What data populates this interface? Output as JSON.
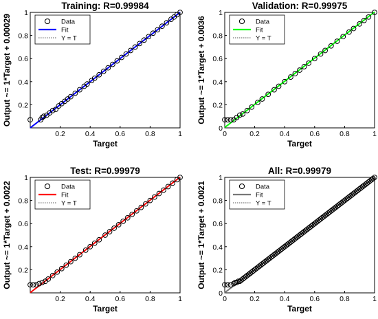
{
  "colors": {
    "training_fit": "#0000ff",
    "validation_fit": "#00ff00",
    "test_fit": "#ff0000",
    "all_fit": "#777777",
    "data_marker": "#000000",
    "identity": "#555555"
  },
  "chart_data": [
    {
      "type": "scatter",
      "title": "Training: R=0.99984",
      "xlabel": "Target",
      "ylabel": "Output ~= 1*Target + 0.00029",
      "xlim": [
        0,
        1
      ],
      "ylim": [
        0,
        1
      ],
      "xticks": [
        "0.2",
        "0.4",
        "0.6",
        "0.8",
        "1"
      ],
      "yticks": [
        "0.2",
        "0.4",
        "0.6",
        "0.8",
        "1"
      ],
      "grid": false,
      "legend_position": "top-left",
      "legend": [
        "Data",
        "Fit",
        "Y = T"
      ],
      "fit": {
        "slope": 1,
        "intercept": 0.00029,
        "color": "#0000ff"
      },
      "points": [
        [
          0.0,
          0.07
        ],
        [
          0.07,
          0.07
        ],
        [
          0.08,
          0.09
        ],
        [
          0.09,
          0.1
        ],
        [
          0.11,
          0.11
        ],
        [
          0.13,
          0.13
        ],
        [
          0.15,
          0.15
        ],
        [
          0.17,
          0.16
        ],
        [
          0.19,
          0.19
        ],
        [
          0.21,
          0.21
        ],
        [
          0.23,
          0.23
        ],
        [
          0.25,
          0.25
        ],
        [
          0.27,
          0.27
        ],
        [
          0.3,
          0.3
        ],
        [
          0.33,
          0.33
        ],
        [
          0.36,
          0.36
        ],
        [
          0.38,
          0.38
        ],
        [
          0.41,
          0.41
        ],
        [
          0.43,
          0.43
        ],
        [
          0.46,
          0.46
        ],
        [
          0.49,
          0.49
        ],
        [
          0.52,
          0.52
        ],
        [
          0.55,
          0.55
        ],
        [
          0.58,
          0.58
        ],
        [
          0.61,
          0.61
        ],
        [
          0.64,
          0.64
        ],
        [
          0.67,
          0.67
        ],
        [
          0.7,
          0.7
        ],
        [
          0.73,
          0.73
        ],
        [
          0.76,
          0.76
        ],
        [
          0.79,
          0.79
        ],
        [
          0.82,
          0.82
        ],
        [
          0.85,
          0.85
        ],
        [
          0.88,
          0.88
        ],
        [
          0.91,
          0.91
        ],
        [
          0.94,
          0.94
        ],
        [
          0.96,
          0.96
        ],
        [
          0.98,
          0.98
        ],
        [
          1.0,
          1.0
        ]
      ]
    },
    {
      "type": "scatter",
      "title": "Validation: R=0.99975",
      "xlabel": "Target",
      "ylabel": "Output ~= 1*Target + 0.0036",
      "xlim": [
        0,
        1
      ],
      "ylim": [
        0,
        1
      ],
      "xticks": [
        "0",
        "0.2",
        "0.4",
        "0.6",
        "0.8",
        "1"
      ],
      "yticks": [
        "0",
        "0.2",
        "0.4",
        "0.6",
        "0.8",
        "1"
      ],
      "grid": false,
      "legend_position": "top-left",
      "legend": [
        "Data",
        "Fit",
        "Y = T"
      ],
      "fit": {
        "slope": 1,
        "intercept": 0.0036,
        "color": "#00ff00"
      },
      "points": [
        [
          0.0,
          0.07
        ],
        [
          0.02,
          0.07
        ],
        [
          0.04,
          0.07
        ],
        [
          0.06,
          0.07
        ],
        [
          0.08,
          0.09
        ],
        [
          0.1,
          0.11
        ],
        [
          0.12,
          0.12
        ],
        [
          0.15,
          0.15
        ],
        [
          0.18,
          0.18
        ],
        [
          0.22,
          0.22
        ],
        [
          0.25,
          0.25
        ],
        [
          0.29,
          0.29
        ],
        [
          0.33,
          0.33
        ],
        [
          0.36,
          0.36
        ],
        [
          0.4,
          0.4
        ],
        [
          0.44,
          0.44
        ],
        [
          0.47,
          0.47
        ],
        [
          0.5,
          0.5
        ],
        [
          0.53,
          0.53
        ],
        [
          0.56,
          0.56
        ],
        [
          0.6,
          0.6
        ],
        [
          0.64,
          0.64
        ],
        [
          0.67,
          0.67
        ],
        [
          0.71,
          0.71
        ],
        [
          0.75,
          0.75
        ],
        [
          0.79,
          0.79
        ],
        [
          0.83,
          0.83
        ],
        [
          0.86,
          0.86
        ],
        [
          0.9,
          0.9
        ],
        [
          0.93,
          0.93
        ],
        [
          0.96,
          0.96
        ],
        [
          1.0,
          1.0
        ]
      ]
    },
    {
      "type": "scatter",
      "title": "Test: R=0.99979",
      "xlabel": "Target",
      "ylabel": "Output ~= 1*Target + 0.0022",
      "xlim": [
        0,
        1
      ],
      "ylim": [
        0,
        1
      ],
      "xticks": [
        "0.2",
        "0.4",
        "0.6",
        "0.8",
        "1"
      ],
      "yticks": [
        "0.2",
        "0.4",
        "0.6",
        "0.8",
        "1"
      ],
      "grid": false,
      "legend_position": "top-left",
      "legend": [
        "Data",
        "Fit",
        "Y = T"
      ],
      "fit": {
        "slope": 1,
        "intercept": 0.0022,
        "color": "#ff0000"
      },
      "points": [
        [
          0.0,
          0.07
        ],
        [
          0.02,
          0.07
        ],
        [
          0.04,
          0.07
        ],
        [
          0.06,
          0.08
        ],
        [
          0.08,
          0.09
        ],
        [
          0.1,
          0.1
        ],
        [
          0.12,
          0.12
        ],
        [
          0.15,
          0.15
        ],
        [
          0.18,
          0.18
        ],
        [
          0.21,
          0.21
        ],
        [
          0.24,
          0.24
        ],
        [
          0.27,
          0.27
        ],
        [
          0.3,
          0.3
        ],
        [
          0.33,
          0.33
        ],
        [
          0.37,
          0.37
        ],
        [
          0.4,
          0.4
        ],
        [
          0.43,
          0.43
        ],
        [
          0.46,
          0.46
        ],
        [
          0.5,
          0.5
        ],
        [
          0.53,
          0.53
        ],
        [
          0.56,
          0.56
        ],
        [
          0.59,
          0.59
        ],
        [
          0.62,
          0.62
        ],
        [
          0.65,
          0.65
        ],
        [
          0.68,
          0.68
        ],
        [
          0.71,
          0.71
        ],
        [
          0.74,
          0.74
        ],
        [
          0.77,
          0.77
        ],
        [
          0.8,
          0.8
        ],
        [
          0.83,
          0.83
        ],
        [
          0.86,
          0.86
        ],
        [
          0.89,
          0.89
        ],
        [
          0.92,
          0.92
        ],
        [
          0.95,
          0.95
        ],
        [
          0.98,
          0.98
        ],
        [
          1.0,
          1.0
        ]
      ]
    },
    {
      "type": "scatter",
      "title": "All: R=0.99979",
      "xlabel": "Target",
      "ylabel": "Output ~= 1*Target + 0.0021",
      "xlim": [
        0,
        1
      ],
      "ylim": [
        0,
        1
      ],
      "xticks": [
        "0",
        "0.2",
        "0.4",
        "0.6",
        "0.8",
        "1"
      ],
      "yticks": [
        "0",
        "0.2",
        "0.4",
        "0.6",
        "0.8",
        "1"
      ],
      "grid": false,
      "legend_position": "top-left",
      "legend": [
        "Data",
        "Fit",
        "Y = T"
      ],
      "fit": {
        "slope": 1,
        "intercept": 0.0021,
        "color": "#777777"
      },
      "points": [
        [
          0.0,
          0.07
        ],
        [
          0.02,
          0.07
        ],
        [
          0.04,
          0.07
        ],
        [
          0.06,
          0.08
        ],
        [
          0.07,
          0.09
        ],
        [
          0.08,
          0.09
        ],
        [
          0.09,
          0.1
        ],
        [
          0.1,
          0.1
        ],
        [
          0.11,
          0.11
        ],
        [
          0.12,
          0.12
        ],
        [
          0.13,
          0.13
        ],
        [
          0.14,
          0.14
        ],
        [
          0.15,
          0.15
        ],
        [
          0.16,
          0.16
        ],
        [
          0.17,
          0.17
        ],
        [
          0.18,
          0.18
        ],
        [
          0.19,
          0.19
        ],
        [
          0.2,
          0.2
        ],
        [
          0.21,
          0.21
        ],
        [
          0.22,
          0.22
        ],
        [
          0.23,
          0.23
        ],
        [
          0.24,
          0.24
        ],
        [
          0.25,
          0.25
        ],
        [
          0.26,
          0.26
        ],
        [
          0.27,
          0.27
        ],
        [
          0.28,
          0.28
        ],
        [
          0.29,
          0.29
        ],
        [
          0.3,
          0.3
        ],
        [
          0.31,
          0.31
        ],
        [
          0.32,
          0.32
        ],
        [
          0.33,
          0.33
        ],
        [
          0.34,
          0.34
        ],
        [
          0.35,
          0.35
        ],
        [
          0.36,
          0.36
        ],
        [
          0.37,
          0.37
        ],
        [
          0.38,
          0.38
        ],
        [
          0.39,
          0.39
        ],
        [
          0.4,
          0.4
        ],
        [
          0.41,
          0.41
        ],
        [
          0.42,
          0.42
        ],
        [
          0.43,
          0.43
        ],
        [
          0.44,
          0.44
        ],
        [
          0.45,
          0.45
        ],
        [
          0.46,
          0.46
        ],
        [
          0.47,
          0.47
        ],
        [
          0.48,
          0.48
        ],
        [
          0.49,
          0.49
        ],
        [
          0.5,
          0.5
        ],
        [
          0.51,
          0.51
        ],
        [
          0.52,
          0.52
        ],
        [
          0.53,
          0.53
        ],
        [
          0.54,
          0.54
        ],
        [
          0.55,
          0.55
        ],
        [
          0.56,
          0.56
        ],
        [
          0.57,
          0.57
        ],
        [
          0.58,
          0.58
        ],
        [
          0.59,
          0.59
        ],
        [
          0.6,
          0.6
        ],
        [
          0.61,
          0.61
        ],
        [
          0.62,
          0.62
        ],
        [
          0.63,
          0.63
        ],
        [
          0.64,
          0.64
        ],
        [
          0.65,
          0.65
        ],
        [
          0.66,
          0.66
        ],
        [
          0.67,
          0.67
        ],
        [
          0.68,
          0.68
        ],
        [
          0.69,
          0.69
        ],
        [
          0.7,
          0.7
        ],
        [
          0.71,
          0.71
        ],
        [
          0.72,
          0.72
        ],
        [
          0.73,
          0.73
        ],
        [
          0.74,
          0.74
        ],
        [
          0.75,
          0.75
        ],
        [
          0.76,
          0.76
        ],
        [
          0.77,
          0.77
        ],
        [
          0.78,
          0.78
        ],
        [
          0.79,
          0.79
        ],
        [
          0.8,
          0.8
        ],
        [
          0.81,
          0.81
        ],
        [
          0.82,
          0.82
        ],
        [
          0.83,
          0.83
        ],
        [
          0.84,
          0.84
        ],
        [
          0.85,
          0.85
        ],
        [
          0.86,
          0.86
        ],
        [
          0.87,
          0.87
        ],
        [
          0.88,
          0.88
        ],
        [
          0.89,
          0.89
        ],
        [
          0.9,
          0.9
        ],
        [
          0.91,
          0.91
        ],
        [
          0.92,
          0.92
        ],
        [
          0.93,
          0.93
        ],
        [
          0.94,
          0.94
        ],
        [
          0.95,
          0.95
        ],
        [
          0.96,
          0.96
        ],
        [
          0.97,
          0.97
        ],
        [
          0.98,
          0.98
        ],
        [
          0.99,
          0.99
        ],
        [
          1.0,
          1.0
        ]
      ]
    }
  ]
}
